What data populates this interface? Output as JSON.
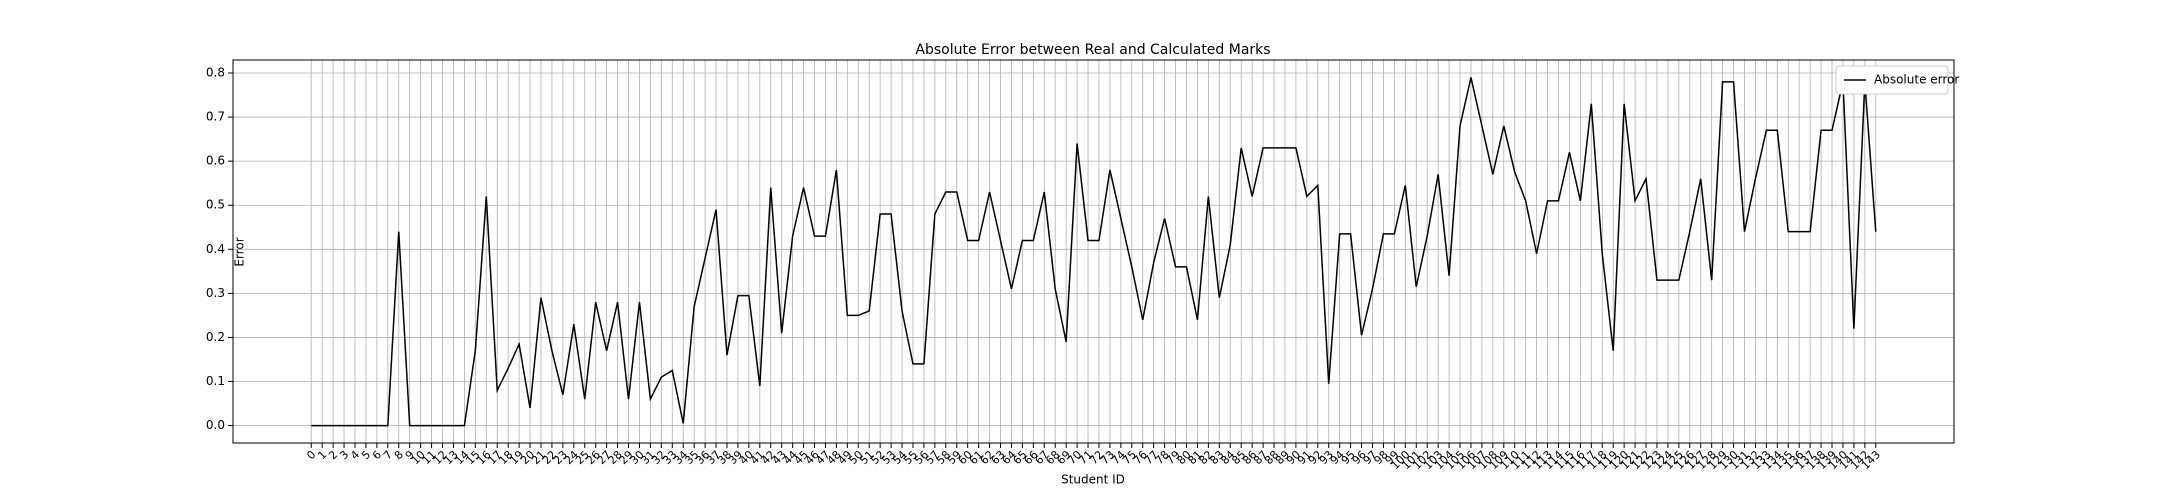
{
  "chart_data": {
    "type": "line",
    "title": "Absolute Error between Real and Calculated Marks",
    "xlabel": "Student ID",
    "ylabel": "Error",
    "x": [
      0,
      1,
      2,
      3,
      4,
      5,
      6,
      7,
      8,
      9,
      10,
      11,
      12,
      13,
      14,
      15,
      16,
      17,
      18,
      19,
      20,
      21,
      22,
      23,
      24,
      25,
      26,
      27,
      28,
      29,
      30,
      31,
      32,
      33,
      34,
      35,
      36,
      37,
      38,
      39,
      40,
      41,
      42,
      43,
      44,
      45,
      46,
      47,
      48,
      49,
      50,
      51,
      52,
      53,
      54,
      55,
      56,
      57,
      58,
      59,
      60,
      61,
      62,
      63,
      64,
      65,
      66,
      67,
      68,
      69,
      70,
      71,
      72,
      73,
      74,
      75,
      76,
      77,
      78,
      79,
      80,
      81,
      82,
      83,
      84,
      85,
      86,
      87,
      88,
      89,
      90,
      91,
      92,
      93,
      94,
      95,
      96,
      97,
      98,
      99,
      100,
      101,
      102,
      103,
      104,
      105,
      106,
      107,
      108,
      109,
      110,
      111,
      112,
      113,
      114,
      115,
      116,
      117,
      118,
      119,
      120,
      121,
      122,
      123,
      124,
      125,
      126,
      127,
      128,
      129,
      130,
      131,
      132,
      133,
      134,
      135,
      136,
      137,
      138,
      139,
      140,
      141,
      142,
      143
    ],
    "series": [
      {
        "name": "Absolute error",
        "color": "#000000",
        "values": [
          0,
          0,
          0,
          0,
          0,
          0,
          0,
          0,
          0.44,
          0,
          0,
          0,
          0,
          0,
          0,
          0.17,
          0.52,
          0.08,
          0.13,
          0.185,
          0.04,
          0.29,
          0.17,
          0.07,
          0.23,
          0.06,
          0.28,
          0.17,
          0.28,
          0.06,
          0.28,
          0.06,
          0.11,
          0.125,
          0.005,
          0.27,
          0.38,
          0.49,
          0.16,
          0.295,
          0.295,
          0.09,
          0.54,
          0.21,
          0.43,
          0.54,
          0.43,
          0.43,
          0.58,
          0.25,
          0.25,
          0.26,
          0.48,
          0.48,
          0.26,
          0.14,
          0.14,
          0.48,
          0.53,
          0.53,
          0.42,
          0.42,
          0.53,
          0.42,
          0.31,
          0.42,
          0.42,
          0.53,
          0.31,
          0.19,
          0.64,
          0.42,
          0.42,
          0.58,
          0.47,
          0.36,
          0.24,
          0.37,
          0.47,
          0.36,
          0.36,
          0.24,
          0.52,
          0.29,
          0.41,
          0.63,
          0.52,
          0.63,
          0.63,
          0.63,
          0.63,
          0.52,
          0.545,
          0.095,
          0.435,
          0.435,
          0.205,
          0.31,
          0.435,
          0.435,
          0.545,
          0.315,
          0.43,
          0.57,
          0.34,
          0.68,
          0.79,
          0.68,
          0.57,
          0.68,
          0.575,
          0.51,
          0.39,
          0.51,
          0.51,
          0.62,
          0.51,
          0.73,
          0.39,
          0.17,
          0.73,
          0.51,
          0.56,
          0.33,
          0.33,
          0.33,
          0.44,
          0.56,
          0.33,
          0.78,
          0.78,
          0.44,
          0.56,
          0.67,
          0.67,
          0.44,
          0.44,
          0.44,
          0.67,
          0.67,
          0.78,
          0.22,
          0.78,
          0.44
        ]
      }
    ],
    "xlim": [
      -7.15,
      150.15
    ],
    "ylim": [
      -0.0395,
      0.8295
    ],
    "xticks": [
      0,
      1,
      2,
      3,
      4,
      5,
      6,
      7,
      8,
      9,
      10,
      11,
      12,
      13,
      14,
      15,
      16,
      17,
      18,
      19,
      20,
      21,
      22,
      23,
      24,
      25,
      26,
      27,
      28,
      29,
      30,
      31,
      32,
      33,
      34,
      35,
      36,
      37,
      38,
      39,
      40,
      41,
      42,
      43,
      44,
      45,
      46,
      47,
      48,
      49,
      50,
      51,
      52,
      53,
      54,
      55,
      56,
      57,
      58,
      59,
      60,
      61,
      62,
      63,
      64,
      65,
      66,
      67,
      68,
      69,
      70,
      71,
      72,
      73,
      74,
      75,
      76,
      77,
      78,
      79,
      80,
      81,
      82,
      83,
      84,
      85,
      86,
      87,
      88,
      89,
      90,
      91,
      92,
      93,
      94,
      95,
      96,
      97,
      98,
      99,
      100,
      101,
      102,
      103,
      104,
      105,
      106,
      107,
      108,
      109,
      110,
      111,
      112,
      113,
      114,
      115,
      116,
      117,
      118,
      119,
      120,
      121,
      122,
      123,
      124,
      125,
      126,
      127,
      128,
      129,
      130,
      131,
      132,
      133,
      134,
      135,
      136,
      137,
      138,
      139,
      140,
      141,
      142,
      143
    ],
    "yticks": [
      {
        "value": 0,
        "label": "0.0"
      },
      0.1,
      0.2,
      0.3,
      0.4,
      0.5,
      0.6,
      0.7,
      0.8
    ],
    "grid": true,
    "legend": "upper right"
  }
}
